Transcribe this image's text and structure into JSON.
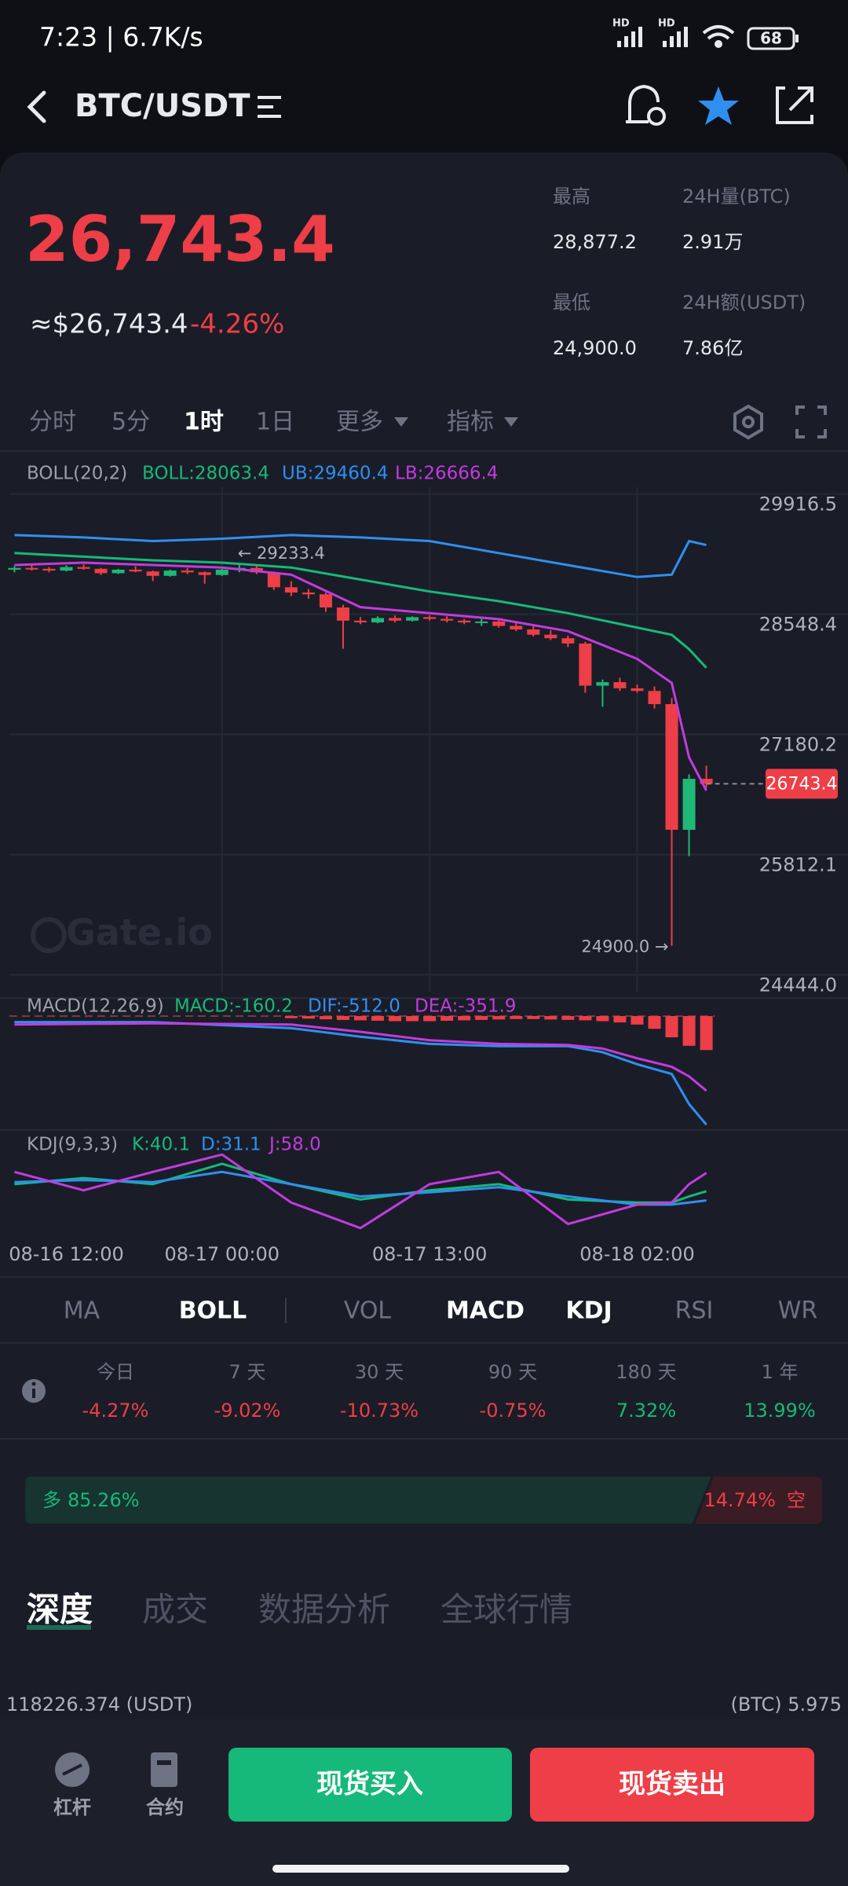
{
  "status_bar": {
    "time": "7:23 | 6.7K/s",
    "signal_labels": [
      "HD",
      "HD"
    ],
    "battery": "68"
  },
  "header": {
    "pair": "BTC/USDT"
  },
  "ticker": {
    "price": "26,743.4",
    "usd_price": "≈$26,743.4",
    "change": "-4.26%",
    "stats": [
      {
        "label": "最高",
        "value": "28,877.2"
      },
      {
        "label": "24H量(BTC)",
        "value": "2.91万"
      },
      {
        "label": "最低",
        "value": "24,900.0"
      },
      {
        "label": "24H额(USDT)",
        "value": "7.86亿"
      }
    ]
  },
  "intervals": {
    "items": [
      "分时",
      "5分",
      "1时",
      "1日",
      "更多",
      "指标"
    ],
    "active": 2
  },
  "chart_data": [
    {
      "type": "candlestick",
      "legend_title": "BOLL(20,2)",
      "colors": {
        "up": "#1fb877",
        "down": "#ee3e47"
      },
      "ohlc": [
        [
          29180,
          29220,
          29150,
          29200
        ],
        [
          29200,
          29230,
          29170,
          29190
        ],
        [
          29190,
          29210,
          29150,
          29170
        ],
        [
          29170,
          29230,
          29160,
          29210
        ],
        [
          29210,
          29240,
          29180,
          29190
        ],
        [
          29190,
          29200,
          29120,
          29140
        ],
        [
          29140,
          29190,
          29130,
          29180
        ],
        [
          29180,
          29220,
          29150,
          29160
        ],
        [
          29160,
          29170,
          29050,
          29110
        ],
        [
          29110,
          29180,
          29100,
          29170
        ],
        [
          29170,
          29200,
          29130,
          29150
        ],
        [
          29150,
          29160,
          29020,
          29120
        ],
        [
          29120,
          29190,
          29110,
          29180
        ],
        [
          29180,
          29233.4,
          29150,
          29200
        ],
        [
          29200,
          29220,
          29130,
          29150
        ],
        [
          29150,
          29160,
          28950,
          28980
        ],
        [
          28980,
          29050,
          28880,
          28920
        ],
        [
          28920,
          28960,
          28850,
          28900
        ],
        [
          28900,
          28920,
          28700,
          28750
        ],
        [
          28750,
          28780,
          28280,
          28600
        ],
        [
          28600,
          28640,
          28560,
          28580
        ],
        [
          28580,
          28650,
          28570,
          28630
        ],
        [
          28630,
          28660,
          28580,
          28600
        ],
        [
          28600,
          28650,
          28590,
          28640
        ],
        [
          28640,
          28660,
          28600,
          28620
        ],
        [
          28620,
          28650,
          28580,
          28600
        ],
        [
          28600,
          28620,
          28560,
          28580
        ],
        [
          28580,
          28620,
          28540,
          28590
        ],
        [
          28590,
          28610,
          28520,
          28540
        ],
        [
          28540,
          28580,
          28480,
          28500
        ],
        [
          28500,
          28540,
          28420,
          28440
        ],
        [
          28440,
          28490,
          28380,
          28400
        ],
        [
          28400,
          28430,
          28300,
          28340
        ],
        [
          28340,
          28360,
          27780,
          27860
        ],
        [
          27860,
          27930,
          27620,
          27900
        ],
        [
          27900,
          27950,
          27800,
          27830
        ],
        [
          27830,
          27870,
          27780,
          27800
        ],
        [
          27800,
          27850,
          27600,
          27650
        ],
        [
          27650,
          27720,
          24900,
          26220
        ],
        [
          26220,
          26850,
          25920,
          26800
        ],
        [
          26800,
          26950,
          26700,
          26743.4
        ]
      ],
      "x": [
        0,
        4,
        8,
        12,
        16,
        20,
        24,
        28,
        32,
        36,
        38,
        39,
        40
      ],
      "series": [
        {
          "name": "BOLL:28063.4",
          "color": "#16b979",
          "values": [
            29369,
            29328,
            29287,
            29260,
            29205,
            29068,
            28932,
            28822,
            28685,
            28521,
            28439,
            28275,
            28063.4
          ]
        },
        {
          "name": "UB:29460.4",
          "color": "#2f8ff0",
          "values": [
            29574,
            29547,
            29506,
            29533,
            29574,
            29547,
            29506,
            29369,
            29232,
            29096,
            29123,
            29506,
            29460.4
          ]
        },
        {
          "name": "LB:26666.4",
          "color": "#c33be0",
          "values": [
            29233,
            29260,
            29233,
            29205,
            29123,
            28754,
            28685,
            28617,
            28480,
            28165,
            27892,
            27044,
            26666.4
          ]
        }
      ],
      "ylim": [
        24444,
        29916.5
      ],
      "yticks": [
        29916.5,
        28548.4,
        27180.2,
        25812.1,
        {
          "value": 24444,
          "label": "24444.0"
        }
      ],
      "xticks": [
        {
          "value": 3,
          "label": "08-16 12:00"
        },
        {
          "value": 12,
          "label": "08-17 00:00"
        },
        {
          "value": 24,
          "label": "08-17 13:00"
        },
        {
          "value": 36,
          "label": "08-18 02:00"
        }
      ],
      "annotations": [
        {
          "index": 13,
          "value": 29233.4,
          "label": "← 29233.4"
        },
        {
          "index": 38,
          "value": 24900,
          "label": "24900.0 →"
        }
      ],
      "last": 26743.4,
      "watermark": "Gate.io",
      "grid": true
    },
    {
      "type": "macd",
      "legend_title": "MACD(12,26,9)",
      "colors": {
        "up": "#1fb877",
        "down": "#ee3e47"
      },
      "x": [
        0,
        8,
        16,
        20,
        24,
        28,
        32,
        34,
        36,
        38,
        39,
        40
      ],
      "series": [
        {
          "name": "DIF:-512.0",
          "color": "#2f8ff0",
          "values": [
            -28,
            -28,
            -57,
            -97,
            -131,
            -142,
            -142,
            -170,
            -227,
            -273,
            -415,
            -512
          ]
        },
        {
          "name": "DEA:-351.9",
          "color": "#c33be0",
          "values": [
            -40,
            -34,
            -40,
            -74,
            -114,
            -131,
            -136,
            -153,
            -199,
            -239,
            -284,
            -351.9
          ]
        }
      ],
      "histogram": {
        "name": "MACD:-160.2",
        "color": "#16b979",
        "x": [
          16,
          17,
          18,
          19,
          20,
          21,
          22,
          23,
          24,
          25,
          26,
          27,
          28,
          29,
          30,
          31,
          32,
          33,
          34,
          35,
          36,
          37,
          38,
          39,
          40
        ],
        "values": [
          -10,
          -12,
          -15,
          -18,
          -20,
          -22,
          -24,
          -24,
          -24,
          -22,
          -20,
          -18,
          -16,
          -14,
          -14,
          -16,
          -18,
          -20,
          -24,
          -30,
          -40,
          -60,
          -100,
          -140,
          -160.2
        ]
      },
      "ylim": [
        -550,
        50
      ]
    },
    {
      "type": "kdj",
      "legend_title": "KDJ(9,3,3)",
      "x": [
        0,
        4,
        8,
        12,
        16,
        20,
        24,
        28,
        32,
        36,
        38,
        39,
        40
      ],
      "series": [
        {
          "name": "K:40.1",
          "color": "#16b979",
          "values": [
            47,
            53,
            47,
            67,
            47,
            32,
            41,
            47,
            32,
            29,
            29,
            35,
            40.1
          ]
        },
        {
          "name": "D:31.1",
          "color": "#2f8ff0",
          "values": [
            49,
            51,
            49,
            59,
            47,
            35,
            39,
            44,
            35,
            27,
            27,
            29,
            31.1
          ]
        },
        {
          "name": "J:58.0",
          "color": "#c33be0",
          "values": [
            59,
            41,
            59,
            76,
            29,
            4,
            47,
            59,
            8,
            27,
            29,
            47,
            58
          ]
        }
      ],
      "ylim": [
        0,
        100
      ]
    }
  ],
  "indicator_tabs": {
    "items": [
      "MA",
      "BOLL",
      "VOL",
      "MACD",
      "KDJ",
      "RSI",
      "WR"
    ],
    "active": [
      1,
      3,
      4
    ]
  },
  "performance": {
    "periods": [
      "今日",
      "7 天",
      "30 天",
      "90 天",
      "180 天",
      "1 年"
    ],
    "changes": [
      "-4.27%",
      "-9.02%",
      "-10.73%",
      "-0.75%",
      "7.32%",
      "13.99%"
    ]
  },
  "sentiment": {
    "labels": [
      "多",
      "空"
    ],
    "values": [
      85.26,
      14.74
    ],
    "value_labels": [
      "85.26%",
      "14.74%"
    ]
  },
  "detail_tabs": {
    "items": [
      "深度",
      "成交",
      "数据分析",
      "全球行情"
    ],
    "active": 0
  },
  "depth": {
    "left": "118226.374 (USDT)",
    "right": "(BTC) 5.975"
  },
  "footer": {
    "leverage": "杠杆",
    "contract": "合约",
    "buy": "现货买入",
    "sell": "现货卖出"
  }
}
